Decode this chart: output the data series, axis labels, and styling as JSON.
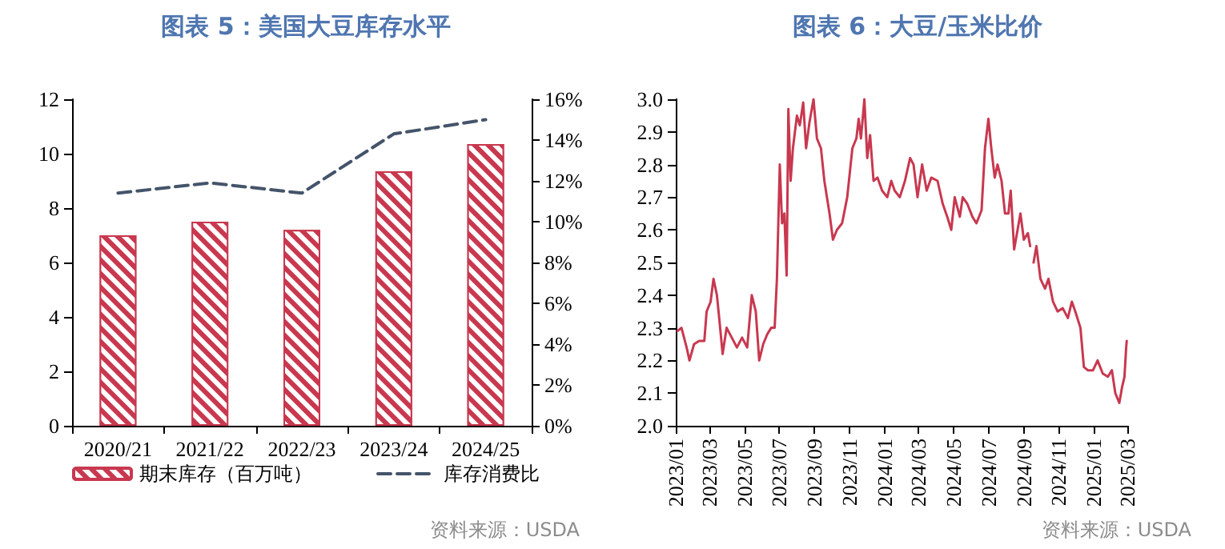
{
  "chart_data": [
    {
      "type": "bar",
      "title": "图表 5：美国大豆库存水平",
      "categories": [
        "2020/21",
        "2021/22",
        "2022/23",
        "2023/24",
        "2024/25"
      ],
      "series": [
        {
          "name": "期末库存（百万吨）",
          "color": "#c8384f",
          "values": [
            7.0,
            7.5,
            7.2,
            9.35,
            10.35
          ]
        },
        {
          "name": "库存消费比",
          "type": "line",
          "axis": "y2",
          "color": "#44546a",
          "line_style": "dashed",
          "values": [
            11.4,
            11.9,
            11.4,
            14.3,
            15.0
          ]
        }
      ],
      "ylim": [
        0,
        12
      ],
      "yticks": [
        0,
        2,
        4,
        6,
        8,
        10,
        12
      ],
      "y2lim": [
        0,
        16
      ],
      "y2ticks": [
        {
          "value": 0,
          "label": "0%"
        },
        {
          "value": 2,
          "label": "2%"
        },
        {
          "value": 4,
          "label": "4%"
        },
        {
          "value": 6,
          "label": "6%"
        },
        {
          "value": 8,
          "label": "8%"
        },
        {
          "value": 10,
          "label": "10%"
        },
        {
          "value": 12,
          "label": "12%"
        },
        {
          "value": 14,
          "label": "14%"
        },
        {
          "value": 16,
          "label": "16%"
        }
      ],
      "legend": "bottom",
      "grid": false,
      "marker": "none",
      "annotations": [
        "资料来源：USDA"
      ]
    },
    {
      "type": "line",
      "title": "图表 6：大豆/玉米比价",
      "x": [
        "2023-01-04",
        "2023-01-11",
        "2023-01-20",
        "2023-01-25",
        "2023-02-02",
        "2023-02-11",
        "2023-02-20",
        "2023-02-24",
        "2023-03-03",
        "2023-03-08",
        "2023-03-14",
        "2023-03-18",
        "2023-03-24",
        "2023-03-31",
        "2023-04-09",
        "2023-04-18",
        "2023-04-27",
        "2023-05-06",
        "2023-05-14",
        "2023-05-21",
        "2023-05-27",
        "2023-06-03",
        "2023-06-10",
        "2023-06-17",
        "2023-06-23",
        "2023-06-27",
        "2023-07-02",
        "2023-07-06",
        "2023-07-10",
        "2023-07-14",
        "2023-07-17",
        "2023-07-21",
        "2023-07-25",
        "2023-08-01",
        "2023-08-06",
        "2023-08-12",
        "2023-08-17",
        "2023-08-23",
        "2023-08-30",
        "2023-09-05",
        "2023-09-12",
        "2023-09-18",
        "2023-09-27",
        "2023-10-03",
        "2023-10-10",
        "2023-10-19",
        "2023-10-28",
        "2023-11-06",
        "2023-11-13",
        "2023-11-17",
        "2023-11-21",
        "2023-11-27",
        "2023-12-02",
        "2023-12-07",
        "2023-12-13",
        "2023-12-20",
        "2023-12-28",
        "2024-01-06",
        "2024-01-13",
        "2024-01-19",
        "2024-01-28",
        "2024-02-06",
        "2024-02-15",
        "2024-02-21",
        "2024-02-28",
        "2024-03-07",
        "2024-03-15",
        "2024-03-23",
        "2024-04-03",
        "2024-04-12",
        "2024-04-20",
        "2024-04-27",
        "2024-05-03",
        "2024-05-12",
        "2024-05-17",
        "2024-05-25",
        "2024-06-03",
        "2024-06-10",
        "2024-06-19",
        "2024-06-25",
        "2024-07-01",
        "2024-07-06",
        "2024-07-12",
        "2024-07-17",
        "2024-07-24",
        "2024-07-30",
        "2024-08-05",
        "2024-08-09",
        "2024-08-15",
        "2024-08-21",
        "2024-08-26",
        "2024-09-01",
        "2024-09-08",
        "2024-09-12",
        "2024-09-15",
        "2024-09-18",
        "2024-09-23",
        "2024-09-30",
        "2024-10-08",
        "2024-10-14",
        "2024-10-22",
        "2024-10-30",
        "2024-11-08",
        "2024-11-17",
        "2024-11-24",
        "2024-11-30",
        "2024-12-09",
        "2024-12-15",
        "2024-12-22",
        "2024-12-31",
        "2025-01-08",
        "2025-01-17",
        "2025-01-26",
        "2025-02-02",
        "2025-02-08",
        "2025-02-15",
        "2025-02-20",
        "2025-02-24",
        "2025-02-27",
        "2025-02-28"
      ],
      "series": [
        {
          "color": "#c8384f",
          "values": [
            2.29,
            2.3,
            2.24,
            2.2,
            2.25,
            2.26,
            2.26,
            2.35,
            2.38,
            2.45,
            2.4,
            2.33,
            2.22,
            2.3,
            2.27,
            2.24,
            2.27,
            2.24,
            2.4,
            2.35,
            2.2,
            2.25,
            2.28,
            2.3,
            2.3,
            2.45,
            2.8,
            2.62,
            2.65,
            2.46,
            2.97,
            2.75,
            2.85,
            2.95,
            2.92,
            2.99,
            2.85,
            2.93,
            3.0,
            2.88,
            2.85,
            2.75,
            2.65,
            2.57,
            2.6,
            2.62,
            2.7,
            2.85,
            2.88,
            2.94,
            2.88,
            3.0,
            2.82,
            2.89,
            2.75,
            2.76,
            2.72,
            2.7,
            2.75,
            2.72,
            2.7,
            2.75,
            2.82,
            2.8,
            2.7,
            2.8,
            2.72,
            2.76,
            2.75,
            2.68,
            2.64,
            2.6,
            2.7,
            2.64,
            2.7,
            2.68,
            2.64,
            2.62,
            2.66,
            2.85,
            2.94,
            2.85,
            2.76,
            2.8,
            2.75,
            2.65,
            2.65,
            2.72,
            2.54,
            2.6,
            2.65,
            2.57,
            2.59,
            2.55,
            null,
            2.5,
            2.55,
            2.45,
            2.42,
            2.45,
            2.38,
            2.35,
            2.36,
            2.33,
            2.38,
            2.35,
            2.3,
            2.18,
            2.17,
            2.17,
            2.2,
            2.16,
            2.15,
            2.17,
            2.1,
            2.07,
            2.12,
            2.15,
            2.24,
            2.26
          ]
        }
      ],
      "xlim": [
        "2023-01",
        "2025-03"
      ],
      "xticks": [
        {
          "value": "2023-01",
          "label": "2023/01"
        },
        {
          "value": "2023-03",
          "label": "2023/03"
        },
        {
          "value": "2023-05",
          "label": "2023/05"
        },
        {
          "value": "2023-07",
          "label": "2023/07"
        },
        {
          "value": "2023-09",
          "label": "2023/09"
        },
        {
          "value": "2023-11",
          "label": "2023/11"
        },
        {
          "value": "2024-01",
          "label": "2024/01"
        },
        {
          "value": "2024-03",
          "label": "2024/03"
        },
        {
          "value": "2024-05",
          "label": "2024/05"
        },
        {
          "value": "2024-07",
          "label": "2024/07"
        },
        {
          "value": "2024-09",
          "label": "2024/09"
        },
        {
          "value": "2024-11",
          "label": "2024/11"
        },
        {
          "value": "2025-01",
          "label": "2025/01"
        },
        {
          "value": "2025-03",
          "label": "2025/03"
        }
      ],
      "ylim": [
        2.0,
        3.0
      ],
      "yticks": [
        {
          "value": 2.0,
          "label": "2.0"
        },
        {
          "value": 2.1,
          "label": "2.1"
        },
        {
          "value": 2.2,
          "label": "2.2"
        },
        {
          "value": 2.3,
          "label": "2.3"
        },
        {
          "value": 2.4,
          "label": "2.4"
        },
        {
          "value": 2.5,
          "label": "2.5"
        },
        {
          "value": 2.6,
          "label": "2.6"
        },
        {
          "value": 2.7,
          "label": "2.7"
        },
        {
          "value": 2.8,
          "label": "2.8"
        },
        {
          "value": 2.9,
          "label": "2.9"
        },
        {
          "value": 3.0,
          "label": "3.0"
        }
      ],
      "grid": false,
      "marker": "none",
      "line_style": "solid",
      "annotations": [
        "资料来源：USDA"
      ]
    }
  ]
}
